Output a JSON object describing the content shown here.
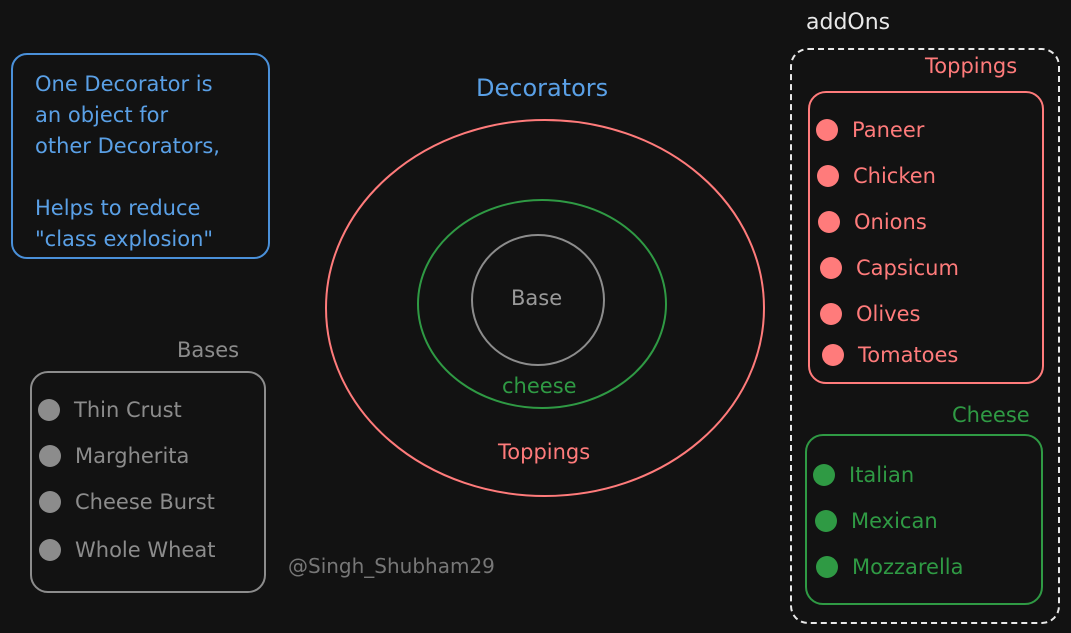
{
  "note": {
    "text": "One Decorator is\nan object for\nother Decorators,\n\nHelps to reduce\n\"class explosion\""
  },
  "diagram": {
    "title": "Decorators",
    "base_label": "Base",
    "cheese_label": "cheese",
    "toppings_label": "Toppings"
  },
  "addons": {
    "label": "addOns",
    "toppings": {
      "title": "Toppings",
      "items": [
        "Paneer",
        "Chicken",
        "Onions",
        "Capsicum",
        "Olives",
        "Tomatoes"
      ]
    },
    "cheese": {
      "title": "Cheese",
      "items": [
        "Italian",
        "Mexican",
        "Mozzarella"
      ]
    }
  },
  "bases": {
    "title": "Bases",
    "items": [
      "Thin Crust",
      "Margherita",
      "Cheese Burst",
      "Whole Wheat"
    ]
  },
  "credit": "@Singh_Shubham29",
  "colors": {
    "background": "#121212",
    "blue": "#5aa0e6",
    "red": "#ff7b7b",
    "green": "#2f9a44",
    "grey": "#8c8c8c",
    "white": "#e8e8e8"
  }
}
